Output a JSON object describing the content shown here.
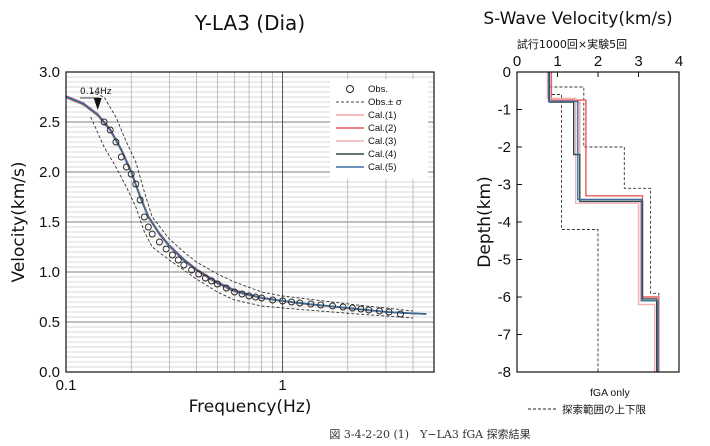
{
  "chart_data": [
    {
      "type": "line",
      "title": "Y-LA3 (Dia)",
      "xlabel": "Frequency(Hz)",
      "ylabel": "Velocity(km/s)",
      "xscale": "log",
      "xlim": [
        0.1,
        5
      ],
      "ylim": [
        0.0,
        3.0
      ],
      "x_tick_labels": [
        "0.1",
        "1"
      ],
      "y_tick_labels": [
        "0.0",
        "0.5",
        "1.0",
        "1.5",
        "2.0",
        "2.5",
        "3.0"
      ],
      "grid": true,
      "legend": "top-right",
      "annotation": "0.14Hz",
      "annotation_freq": 0.14,
      "legend_entries": [
        {
          "label": "Obs.",
          "style": "circle",
          "color": "#222222"
        },
        {
          "label": "Obs.± σ",
          "style": "dashed",
          "color": "#444444"
        },
        {
          "label": "Cal.(1)",
          "style": "line",
          "color": "#f5a5a5"
        },
        {
          "label": "Cal.(2)",
          "style": "line",
          "color": "#e85a5a"
        },
        {
          "label": "Cal.(3)",
          "style": "line",
          "color": "#f1b3b3"
        },
        {
          "label": "Cal.(4)",
          "style": "line",
          "color": "#2d4a4a"
        },
        {
          "label": "Cal.(5)",
          "style": "line",
          "color": "#3a6fa0"
        }
      ],
      "observed": {
        "x": [
          0.15,
          0.16,
          0.17,
          0.18,
          0.19,
          0.2,
          0.21,
          0.22,
          0.23,
          0.24,
          0.25,
          0.27,
          0.29,
          0.31,
          0.33,
          0.35,
          0.38,
          0.41,
          0.44,
          0.47,
          0.5,
          0.55,
          0.6,
          0.65,
          0.7,
          0.75,
          0.8,
          0.9,
          1.0,
          1.1,
          1.2,
          1.35,
          1.5,
          1.7,
          1.9,
          2.1,
          2.3,
          2.5,
          2.8,
          3.1,
          3.5
        ],
        "y": [
          2.5,
          2.42,
          2.3,
          2.15,
          2.05,
          1.98,
          1.88,
          1.72,
          1.55,
          1.45,
          1.38,
          1.3,
          1.23,
          1.17,
          1.12,
          1.07,
          1.02,
          0.98,
          0.94,
          0.91,
          0.88,
          0.84,
          0.8,
          0.78,
          0.76,
          0.75,
          0.74,
          0.72,
          0.71,
          0.7,
          0.69,
          0.68,
          0.67,
          0.66,
          0.65,
          0.64,
          0.63,
          0.62,
          0.61,
          0.6,
          0.58
        ]
      },
      "obs_plus_sigma": {
        "x": [
          0.13,
          0.15,
          0.17,
          0.19,
          0.21,
          0.23,
          0.25,
          0.3,
          0.35,
          0.4,
          0.5,
          0.6,
          0.8,
          1.0,
          1.3,
          1.7,
          2.2,
          3.0,
          4.0
        ],
        "y": [
          2.8,
          2.75,
          2.55,
          2.3,
          2.1,
          1.8,
          1.55,
          1.33,
          1.2,
          1.1,
          0.98,
          0.9,
          0.8,
          0.76,
          0.73,
          0.7,
          0.67,
          0.64,
          0.61
        ]
      },
      "obs_minus_sigma": {
        "x": [
          0.13,
          0.15,
          0.17,
          0.19,
          0.21,
          0.23,
          0.25,
          0.3,
          0.35,
          0.4,
          0.5,
          0.6,
          0.8,
          1.0,
          1.3,
          1.7,
          2.2,
          3.0,
          4.0
        ],
        "y": [
          2.55,
          2.25,
          2.05,
          1.85,
          1.65,
          1.4,
          1.25,
          1.12,
          1.02,
          0.93,
          0.8,
          0.72,
          0.66,
          0.64,
          0.62,
          0.6,
          0.58,
          0.56,
          0.54
        ]
      },
      "series": [
        {
          "name": "Cal.(1)",
          "color": "#f5a5a5",
          "x": [
            0.1,
            0.12,
            0.14,
            0.16,
            0.18,
            0.2,
            0.22,
            0.24,
            0.27,
            0.3,
            0.35,
            0.4,
            0.5,
            0.6,
            0.7,
            0.8,
            1.0,
            1.3,
            1.7,
            2.2,
            3.0,
            4.0,
            4.6
          ],
          "y": [
            2.75,
            2.68,
            2.57,
            2.42,
            2.22,
            2.0,
            1.75,
            1.55,
            1.38,
            1.26,
            1.12,
            1.02,
            0.89,
            0.81,
            0.77,
            0.74,
            0.71,
            0.68,
            0.655,
            0.63,
            0.6,
            0.585,
            0.58
          ]
        },
        {
          "name": "Cal.(2)",
          "color": "#e85a5a",
          "x": [
            0.1,
            0.12,
            0.14,
            0.16,
            0.18,
            0.2,
            0.22,
            0.24,
            0.27,
            0.3,
            0.35,
            0.4,
            0.5,
            0.6,
            0.7,
            0.8,
            1.0,
            1.3,
            1.7,
            2.2,
            3.0,
            4.0,
            4.6
          ],
          "y": [
            2.76,
            2.69,
            2.58,
            2.43,
            2.23,
            2.01,
            1.76,
            1.56,
            1.39,
            1.27,
            1.13,
            1.03,
            0.9,
            0.82,
            0.775,
            0.745,
            0.71,
            0.68,
            0.655,
            0.63,
            0.6,
            0.585,
            0.58
          ]
        },
        {
          "name": "Cal.(3)",
          "color": "#f1b3b3",
          "x": [
            0.1,
            0.12,
            0.14,
            0.16,
            0.18,
            0.2,
            0.22,
            0.24,
            0.27,
            0.3,
            0.35,
            0.4,
            0.5,
            0.6,
            0.7,
            0.8,
            1.0,
            1.3,
            1.7,
            2.2,
            3.0,
            4.0,
            4.6
          ],
          "y": [
            2.74,
            2.67,
            2.56,
            2.41,
            2.21,
            1.99,
            1.74,
            1.54,
            1.37,
            1.25,
            1.11,
            1.01,
            0.88,
            0.8,
            0.765,
            0.735,
            0.705,
            0.675,
            0.65,
            0.625,
            0.6,
            0.585,
            0.58
          ]
        },
        {
          "name": "Cal.(4)",
          "color": "#2d4a4a",
          "x": [
            0.1,
            0.12,
            0.14,
            0.16,
            0.18,
            0.2,
            0.22,
            0.24,
            0.27,
            0.3,
            0.35,
            0.4,
            0.5,
            0.6,
            0.7,
            0.8,
            1.0,
            1.3,
            1.7,
            2.2,
            3.0,
            4.0,
            4.6
          ],
          "y": [
            2.75,
            2.68,
            2.57,
            2.42,
            2.22,
            2.0,
            1.75,
            1.55,
            1.38,
            1.26,
            1.12,
            1.02,
            0.89,
            0.81,
            0.77,
            0.74,
            0.71,
            0.68,
            0.655,
            0.63,
            0.6,
            0.585,
            0.58
          ]
        },
        {
          "name": "Cal.(5)",
          "color": "#3a6fa0",
          "x": [
            0.1,
            0.12,
            0.14,
            0.16,
            0.18,
            0.2,
            0.22,
            0.24,
            0.27,
            0.3,
            0.35,
            0.4,
            0.5,
            0.6,
            0.7,
            0.8,
            1.0,
            1.3,
            1.7,
            2.2,
            3.0,
            4.0,
            4.6
          ],
          "y": [
            2.755,
            2.685,
            2.575,
            2.425,
            2.225,
            2.005,
            1.755,
            1.555,
            1.385,
            1.265,
            1.125,
            1.025,
            0.895,
            0.815,
            0.772,
            0.742,
            0.712,
            0.682,
            0.657,
            0.632,
            0.602,
            0.587,
            0.582
          ]
        }
      ]
    },
    {
      "type": "line",
      "title": "S-Wave Velocity(km/s)",
      "subtitle": "試行1000回×実験5回",
      "ylabel": "Depth(km)",
      "xlim": [
        0,
        4
      ],
      "ylim": [
        -8,
        0
      ],
      "x_tick_labels": [
        "0",
        "1",
        "2",
        "3",
        "4"
      ],
      "y_tick_labels": [
        "0",
        "-1",
        "-2",
        "-3",
        "-4",
        "-5",
        "-6",
        "-7",
        "-8"
      ],
      "axis_position": "top",
      "grid": false,
      "legend": "bottom",
      "legend_entries": [
        {
          "label": "fGA only",
          "style": "none"
        },
        {
          "label": "探索範囲の上下限",
          "style": "dashed"
        }
      ],
      "search_lower": {
        "v": [
          0.8,
          0.8,
          1.1,
          1.1,
          2.0,
          2.0
        ],
        "d": [
          0,
          -0.6,
          -0.6,
          -4.2,
          -4.2,
          -8
        ]
      },
      "search_upper": {
        "v": [
          0.8,
          0.8,
          1.65,
          1.65,
          2.65,
          2.65,
          3.3,
          3.3,
          3.5,
          3.5
        ],
        "d": [
          0,
          -0.4,
          -0.4,
          -2.0,
          -2.0,
          -3.1,
          -3.1,
          -5.9,
          -5.9,
          -8
        ]
      },
      "profiles": [
        {
          "name": "Cal.(1)",
          "color": "#f5a5a5",
          "v": [
            0.8,
            0.8,
            1.55,
            1.55,
            3.05,
            3.05,
            3.45,
            3.45
          ],
          "d": [
            0,
            -0.8,
            -0.8,
            -3.4,
            -3.4,
            -6.1,
            -6.1,
            -8
          ]
        },
        {
          "name": "Cal.(2)",
          "color": "#e85a5a",
          "v": [
            0.85,
            0.85,
            1.7,
            1.7,
            3.1,
            3.1,
            3.5,
            3.5
          ],
          "d": [
            0,
            -0.75,
            -0.75,
            -3.3,
            -3.3,
            -6.0,
            -6.0,
            -8
          ]
        },
        {
          "name": "Cal.(3)",
          "color": "#f1b3b3",
          "v": [
            0.75,
            0.75,
            1.45,
            1.45,
            3.0,
            3.0,
            3.4,
            3.4
          ],
          "d": [
            0,
            -0.7,
            -0.7,
            -3.5,
            -3.5,
            -6.2,
            -6.2,
            -8
          ]
        },
        {
          "name": "Cal.(4)",
          "color": "#2d4a4a",
          "v": [
            0.8,
            0.8,
            1.4,
            1.4,
            1.55,
            1.55,
            3.1,
            3.1,
            3.45,
            3.45
          ],
          "d": [
            0,
            -0.8,
            -0.8,
            -2.2,
            -2.2,
            -3.45,
            -3.45,
            -6.05,
            -6.05,
            -8
          ]
        },
        {
          "name": "Cal.(5)",
          "color": "#3a6fa0",
          "v": [
            0.78,
            0.78,
            1.5,
            1.5,
            3.08,
            3.08,
            3.48,
            3.48
          ],
          "d": [
            0,
            -0.78,
            -0.78,
            -3.4,
            -3.4,
            -6.1,
            -6.1,
            -8
          ]
        }
      ]
    }
  ],
  "caption": "図 3-4-2-20 (1)　Y−LA3 fGA 探索結果"
}
